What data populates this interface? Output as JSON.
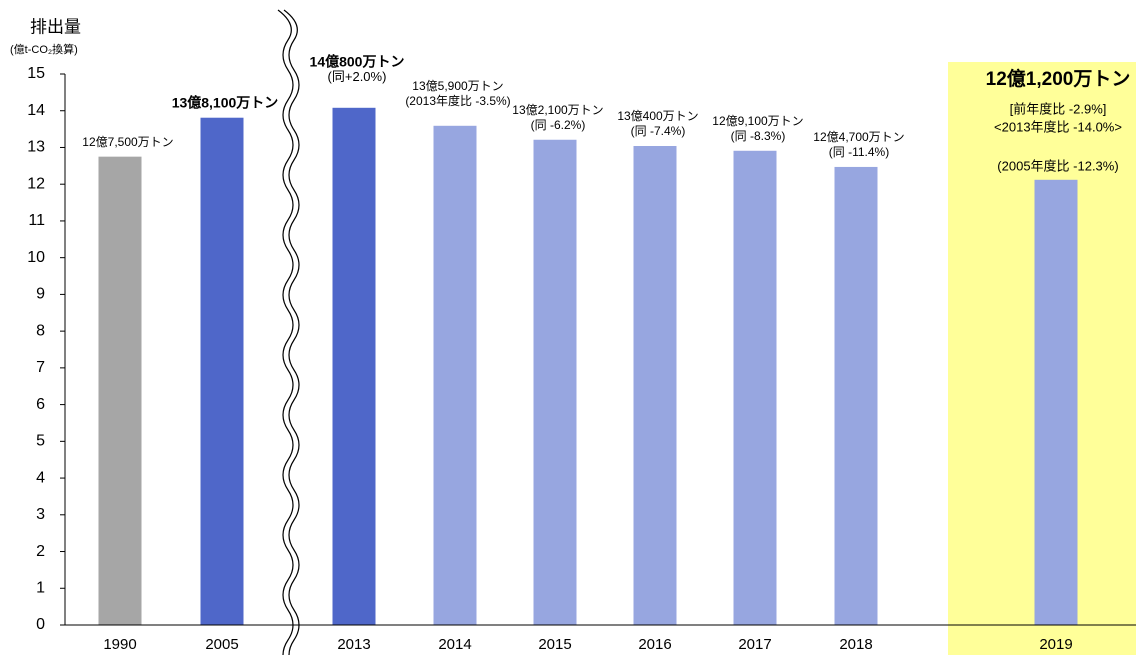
{
  "chart_data": {
    "type": "bar",
    "y_label": "排出量",
    "y_unit": "(億t-CO₂換算)",
    "categories": [
      "1990",
      "2005",
      "2013",
      "2014",
      "2015",
      "2016",
      "2017",
      "2018",
      "2019"
    ],
    "values": [
      12.75,
      13.81,
      14.08,
      13.59,
      13.21,
      13.04,
      12.91,
      12.47,
      12.12
    ],
    "value_labels": [
      "12億7,500万トン",
      "13億8,100万トン",
      "14億800万トン",
      "13億5,900万トン",
      "13億2,100万トン",
      "13億400万トン",
      "12億9,100万トン",
      "12億4,700万トン",
      "12億1,200万トン"
    ],
    "notes": [
      [],
      [],
      [
        "(同+2.0%)"
      ],
      [
        "(2013年度比 -3.5%)"
      ],
      [
        "(同 -6.2%)"
      ],
      [
        "(同 -7.4%)"
      ],
      [
        "(同 -8.3%)"
      ],
      [
        "(同 -11.4%)"
      ],
      [
        "[前年度比 -2.9%]",
        "<2013年度比 -14.0%>",
        "(2005年度比 ‑12.3%)"
      ]
    ],
    "colors": [
      "#a6a6a6",
      "#4f67c9",
      "#4f67c9",
      "#97a6e0",
      "#97a6e0",
      "#97a6e0",
      "#97a6e0",
      "#97a6e0",
      "#97a6e0"
    ],
    "highlight_color": "#ffff99",
    "highlight_label_color": "#ee3a24",
    "ylim": [
      0,
      15
    ],
    "yticks": [
      0,
      1,
      2,
      3,
      4,
      5,
      6,
      7,
      8,
      9,
      10,
      11,
      12,
      13,
      14,
      15
    ]
  }
}
